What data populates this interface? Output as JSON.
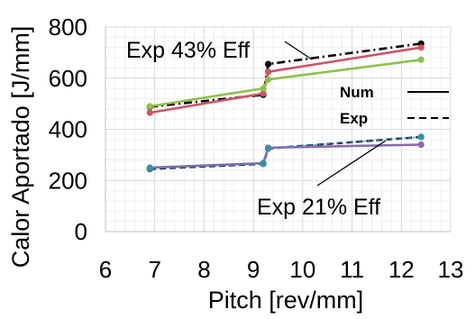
{
  "chart_data": {
    "type": "line",
    "title": "",
    "xlabel": "Pitch [rev/mm]",
    "ylabel": "Calor Aportado [J/mm]",
    "xlim": [
      6,
      13
    ],
    "ylim": [
      0,
      800
    ],
    "xticks": [
      "6",
      "7",
      "8",
      "9",
      "10",
      "11",
      "12",
      "13"
    ],
    "yticks": [
      "0",
      "200",
      "400",
      "600",
      "800"
    ],
    "grid": true,
    "legend": {
      "placement": "right",
      "entries": [
        {
          "label": "Num",
          "style": "solid"
        },
        {
          "label": "Exp",
          "style": "dashed"
        }
      ]
    },
    "annotations": [
      "Exp 43% Eff",
      "Exp 21% Eff"
    ],
    "series": [
      {
        "color": "#000000",
        "style": "dashdot",
        "points": [
          [
            6.9,
            488
          ],
          [
            9.2,
            535
          ],
          [
            9.3,
            655
          ],
          [
            12.4,
            735
          ]
        ]
      },
      {
        "color": "#cc5566",
        "style": "solid",
        "points": [
          [
            6.9,
            465
          ],
          [
            9.2,
            540
          ],
          [
            9.3,
            625
          ],
          [
            12.4,
            720
          ]
        ]
      },
      {
        "color": "#8dc04a",
        "style": "solid",
        "points": [
          [
            6.9,
            490
          ],
          [
            9.2,
            560
          ],
          [
            9.3,
            595
          ],
          [
            12.4,
            672
          ]
        ]
      },
      {
        "color": "#1f3a5a",
        "style": "dashed",
        "points": [
          [
            6.9,
            245
          ],
          [
            9.2,
            265
          ],
          [
            9.3,
            325
          ],
          [
            12.4,
            370
          ]
        ]
      },
      {
        "color": "#8a6bb0",
        "style": "solid",
        "points": [
          [
            6.9,
            250
          ],
          [
            9.2,
            268
          ],
          [
            9.3,
            328
          ],
          [
            12.4,
            340
          ]
        ]
      },
      {
        "color": "#3a8fa8",
        "style": "dotted",
        "points": [
          [
            6.9,
            248
          ],
          [
            9.2,
            266
          ],
          [
            9.3,
            326
          ],
          [
            12.4,
            370
          ]
        ]
      }
    ]
  }
}
